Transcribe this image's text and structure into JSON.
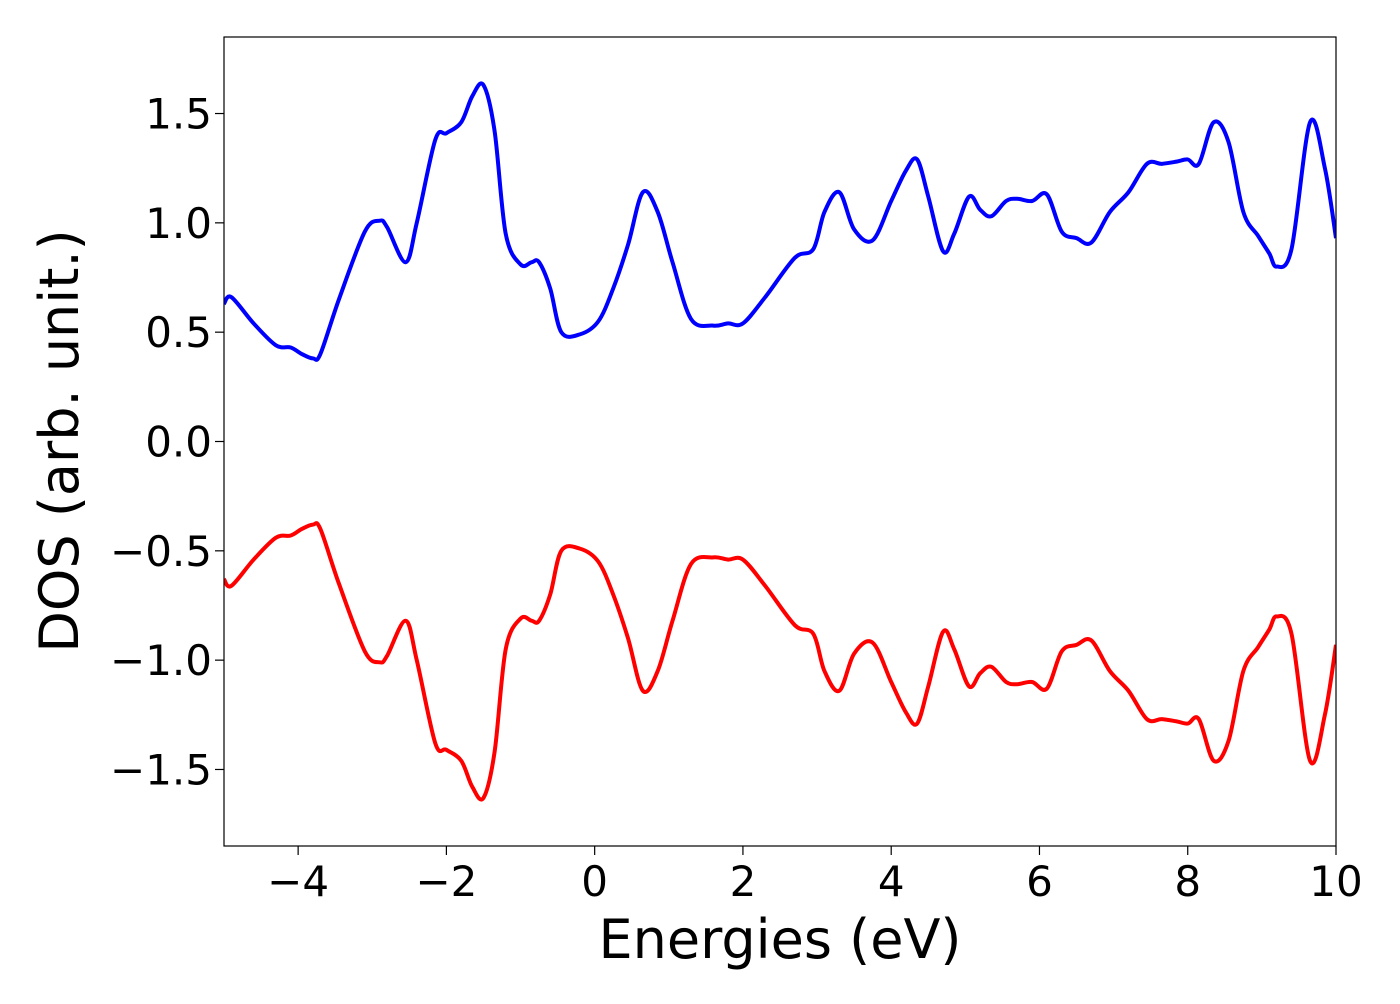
{
  "chart_data": {
    "type": "line",
    "title": "",
    "xlabel": "Energies (eV)",
    "ylabel": "DOS (arb. unit.)",
    "xlim": [
      -5,
      10
    ],
    "ylim": [
      -1.85,
      1.85
    ],
    "xticks": [
      -4,
      -2,
      0,
      2,
      4,
      6,
      8,
      10
    ],
    "yticks": [
      -1.5,
      -1.0,
      -0.5,
      0.0,
      0.5,
      1.0,
      1.5
    ],
    "xtick_labels": [
      "−4",
      "−2",
      "0",
      "2",
      "4",
      "6",
      "8",
      "10"
    ],
    "ytick_labels": [
      "−1.5",
      "−1.0",
      "−0.5",
      "0.0",
      "0.5",
      "1.0",
      "1.5"
    ],
    "grid": false,
    "series": [
      {
        "color": "#0000ff",
        "x": [
          -5.0,
          -4.9,
          -4.6,
          -4.3,
          -4.1,
          -3.95,
          -3.8,
          -3.7,
          -3.45,
          -3.1,
          -2.9,
          -2.8,
          -2.55,
          -2.4,
          -2.15,
          -2.0,
          -1.8,
          -1.65,
          -1.5,
          -1.35,
          -1.2,
          -1.0,
          -0.85,
          -0.75,
          -0.6,
          -0.45,
          -0.2,
          0.05,
          0.25,
          0.45,
          0.65,
          0.85,
          1.05,
          1.3,
          1.6,
          1.8,
          2.0,
          2.3,
          2.7,
          2.95,
          3.1,
          3.3,
          3.5,
          3.75,
          4.0,
          4.2,
          4.35,
          4.5,
          4.7,
          4.85,
          5.05,
          5.2,
          5.35,
          5.55,
          5.7,
          5.9,
          6.1,
          6.3,
          6.5,
          6.7,
          6.95,
          7.2,
          7.45,
          7.65,
          7.85,
          8.0,
          8.15,
          8.35,
          8.55,
          8.75,
          8.95,
          9.1,
          9.2,
          9.4,
          9.65,
          9.85,
          10.0
        ],
        "values": [
          0.63,
          0.66,
          0.54,
          0.44,
          0.43,
          0.4,
          0.38,
          0.4,
          0.65,
          0.96,
          1.01,
          0.98,
          0.82,
          1.0,
          1.38,
          1.41,
          1.46,
          1.58,
          1.63,
          1.42,
          0.95,
          0.81,
          0.82,
          0.82,
          0.7,
          0.5,
          0.49,
          0.55,
          0.7,
          0.9,
          1.14,
          1.05,
          0.82,
          0.56,
          0.53,
          0.54,
          0.54,
          0.66,
          0.84,
          0.88,
          1.05,
          1.14,
          0.97,
          0.92,
          1.1,
          1.24,
          1.29,
          1.12,
          0.87,
          0.95,
          1.12,
          1.06,
          1.03,
          1.1,
          1.11,
          1.1,
          1.13,
          0.96,
          0.93,
          0.91,
          1.05,
          1.14,
          1.27,
          1.27,
          1.28,
          1.29,
          1.27,
          1.46,
          1.37,
          1.05,
          0.94,
          0.86,
          0.8,
          0.88,
          1.46,
          1.25,
          0.93
        ]
      },
      {
        "color": "#ff0000",
        "x": [
          -5.0,
          -4.9,
          -4.6,
          -4.3,
          -4.1,
          -3.95,
          -3.8,
          -3.7,
          -3.45,
          -3.1,
          -2.9,
          -2.8,
          -2.55,
          -2.4,
          -2.15,
          -2.0,
          -1.8,
          -1.65,
          -1.5,
          -1.35,
          -1.2,
          -1.0,
          -0.85,
          -0.75,
          -0.6,
          -0.45,
          -0.2,
          0.05,
          0.25,
          0.45,
          0.65,
          0.85,
          1.05,
          1.3,
          1.6,
          1.8,
          2.0,
          2.3,
          2.7,
          2.95,
          3.1,
          3.3,
          3.5,
          3.75,
          4.0,
          4.2,
          4.35,
          4.5,
          4.7,
          4.85,
          5.05,
          5.2,
          5.35,
          5.55,
          5.7,
          5.9,
          6.1,
          6.3,
          6.5,
          6.7,
          6.95,
          7.2,
          7.45,
          7.65,
          7.85,
          8.0,
          8.15,
          8.35,
          8.55,
          8.75,
          8.95,
          9.1,
          9.2,
          9.4,
          9.65,
          9.85,
          10.0
        ],
        "values": [
          -0.63,
          -0.66,
          -0.54,
          -0.44,
          -0.43,
          -0.4,
          -0.38,
          -0.4,
          -0.65,
          -0.96,
          -1.01,
          -0.98,
          -0.82,
          -1.0,
          -1.38,
          -1.41,
          -1.46,
          -1.58,
          -1.63,
          -1.42,
          -0.95,
          -0.81,
          -0.82,
          -0.82,
          -0.7,
          -0.5,
          -0.49,
          -0.55,
          -0.7,
          -0.9,
          -1.14,
          -1.05,
          -0.82,
          -0.56,
          -0.53,
          -0.54,
          -0.54,
          -0.66,
          -0.84,
          -0.88,
          -1.05,
          -1.14,
          -0.97,
          -0.92,
          -1.1,
          -1.24,
          -1.29,
          -1.12,
          -0.87,
          -0.95,
          -1.12,
          -1.06,
          -1.03,
          -1.1,
          -1.11,
          -1.1,
          -1.13,
          -0.96,
          -0.93,
          -0.91,
          -1.05,
          -1.14,
          -1.27,
          -1.27,
          -1.28,
          -1.29,
          -1.27,
          -1.46,
          -1.37,
          -1.05,
          -0.94,
          -0.86,
          -0.8,
          -0.88,
          -1.46,
          -1.25,
          -0.93
        ]
      }
    ]
  }
}
